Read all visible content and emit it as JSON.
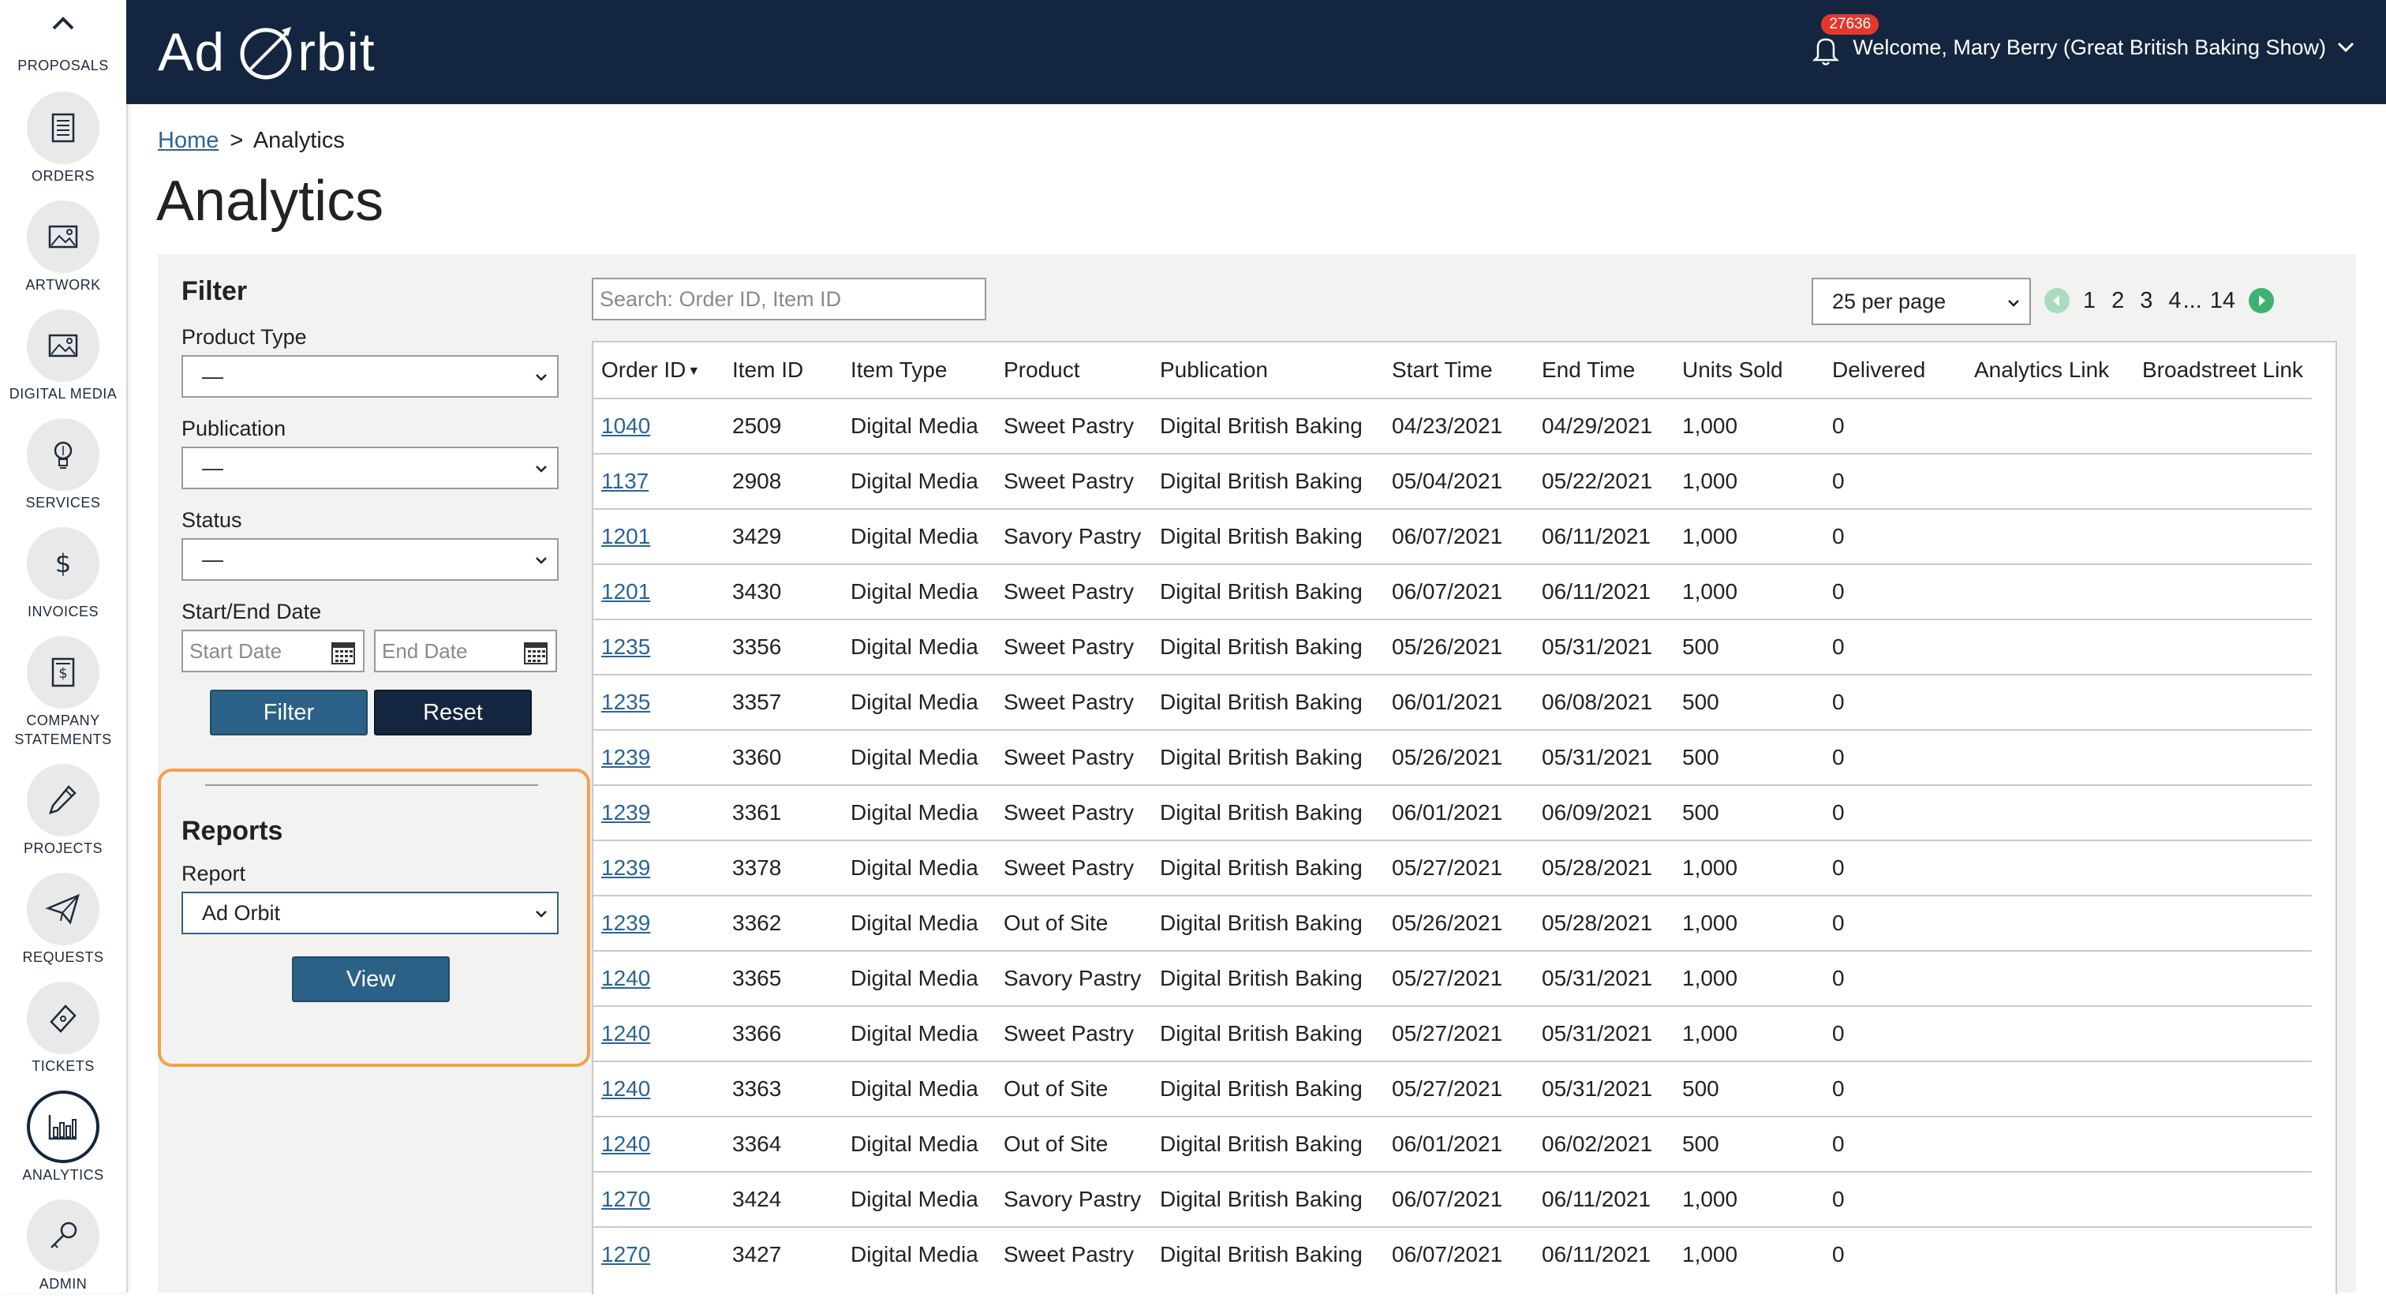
{
  "rail": {
    "top_label": "PROPOSALS",
    "items": [
      {
        "label": "ORDERS",
        "icon": "orders-icon"
      },
      {
        "label": "ARTWORK",
        "icon": "artwork-icon"
      },
      {
        "label": "DIGITAL MEDIA",
        "icon": "digital-media-icon"
      },
      {
        "label": "SERVICES",
        "icon": "services-icon"
      },
      {
        "label": "INVOICES",
        "icon": "dollar-icon"
      },
      {
        "label_line1": "COMPANY",
        "label_line2": "STATEMENTS",
        "icon": "statements-icon"
      },
      {
        "label": "PROJECTS",
        "icon": "pencil-icon"
      },
      {
        "label": "REQUESTS",
        "icon": "paper-plane-icon"
      },
      {
        "label": "TICKETS",
        "icon": "ticket-icon"
      },
      {
        "label": "ANALYTICS",
        "icon": "analytics-icon",
        "active": true
      },
      {
        "label": "ADMIN",
        "icon": "key-icon"
      }
    ]
  },
  "header": {
    "logo_left": "Ad",
    "logo_right": "rbit",
    "notification_count": "27636",
    "welcome": "Welcome, Mary Berry (Great British Baking Show)"
  },
  "breadcrumb": {
    "home": "Home",
    "separator": ">",
    "current": "Analytics"
  },
  "page_title": "Analytics",
  "filter": {
    "title": "Filter",
    "product_type_label": "Product Type",
    "product_type_value": "—",
    "publication_label": "Publication",
    "publication_value": "—",
    "status_label": "Status",
    "status_value": "—",
    "date_label": "Start/End Date",
    "start_placeholder": "Start Date",
    "end_placeholder": "End Date",
    "filter_button": "Filter",
    "reset_button": "Reset"
  },
  "reports": {
    "title": "Reports",
    "report_label": "Report",
    "report_value": "Ad Orbit",
    "view_button": "View"
  },
  "table_controls": {
    "search_placeholder": "Search: Order ID, Item ID",
    "per_page": "25 per page",
    "pages": [
      "1",
      "2",
      "3",
      "4"
    ],
    "ellipsis": "...",
    "last_page": "14"
  },
  "table": {
    "headers": [
      "Order ID",
      "Item ID",
      "Item Type",
      "Product",
      "Publication",
      "Start Time",
      "End Time",
      "Units Sold",
      "Delivered",
      "Analytics Link",
      "Broadstreet Link"
    ],
    "sort_indicator": "▼",
    "rows": [
      [
        "1040",
        "2509",
        "Digital Media",
        "Sweet Pastry",
        "Digital British Baking",
        "04/23/2021",
        "04/29/2021",
        "1,000",
        "0",
        "",
        ""
      ],
      [
        "1137",
        "2908",
        "Digital Media",
        "Sweet Pastry",
        "Digital British Baking",
        "05/04/2021",
        "05/22/2021",
        "1,000",
        "0",
        "",
        ""
      ],
      [
        "1201",
        "3429",
        "Digital Media",
        "Savory Pastry",
        "Digital British Baking",
        "06/07/2021",
        "06/11/2021",
        "1,000",
        "0",
        "",
        ""
      ],
      [
        "1201",
        "3430",
        "Digital Media",
        "Sweet Pastry",
        "Digital British Baking",
        "06/07/2021",
        "06/11/2021",
        "1,000",
        "0",
        "",
        ""
      ],
      [
        "1235",
        "3356",
        "Digital Media",
        "Sweet Pastry",
        "Digital British Baking",
        "05/26/2021",
        "05/31/2021",
        "500",
        "0",
        "",
        ""
      ],
      [
        "1235",
        "3357",
        "Digital Media",
        "Sweet Pastry",
        "Digital British Baking",
        "06/01/2021",
        "06/08/2021",
        "500",
        "0",
        "",
        ""
      ],
      [
        "1239",
        "3360",
        "Digital Media",
        "Sweet Pastry",
        "Digital British Baking",
        "05/26/2021",
        "05/31/2021",
        "500",
        "0",
        "",
        ""
      ],
      [
        "1239",
        "3361",
        "Digital Media",
        "Sweet Pastry",
        "Digital British Baking",
        "06/01/2021",
        "06/09/2021",
        "500",
        "0",
        "",
        ""
      ],
      [
        "1239",
        "3378",
        "Digital Media",
        "Sweet Pastry",
        "Digital British Baking",
        "05/27/2021",
        "05/28/2021",
        "1,000",
        "0",
        "",
        ""
      ],
      [
        "1239",
        "3362",
        "Digital Media",
        "Out of Site",
        "Digital British Baking",
        "05/26/2021",
        "05/28/2021",
        "1,000",
        "0",
        "",
        ""
      ],
      [
        "1240",
        "3365",
        "Digital Media",
        "Savory Pastry",
        "Digital British Baking",
        "05/27/2021",
        "05/31/2021",
        "1,000",
        "0",
        "",
        ""
      ],
      [
        "1240",
        "3366",
        "Digital Media",
        "Sweet Pastry",
        "Digital British Baking",
        "05/27/2021",
        "05/31/2021",
        "1,000",
        "0",
        "",
        ""
      ],
      [
        "1240",
        "3363",
        "Digital Media",
        "Out of Site",
        "Digital British Baking",
        "05/27/2021",
        "05/31/2021",
        "500",
        "0",
        "",
        ""
      ],
      [
        "1240",
        "3364",
        "Digital Media",
        "Out of Site",
        "Digital British Baking",
        "06/01/2021",
        "06/02/2021",
        "500",
        "0",
        "",
        ""
      ],
      [
        "1270",
        "3424",
        "Digital Media",
        "Savory Pastry",
        "Digital British Baking",
        "06/07/2021",
        "06/11/2021",
        "1,000",
        "0",
        "",
        ""
      ],
      [
        "1270",
        "3427",
        "Digital Media",
        "Sweet Pastry",
        "Digital British Baking",
        "06/07/2021",
        "06/11/2021",
        "1,000",
        "0",
        "",
        ""
      ]
    ]
  },
  "colors": {
    "navy": "#14263f",
    "button_blue": "#2b6186",
    "link_blue": "#2a6496",
    "highlight_orange": "#f0a24b",
    "badge_red": "#e5372c",
    "pager_green": "#3cb371"
  }
}
